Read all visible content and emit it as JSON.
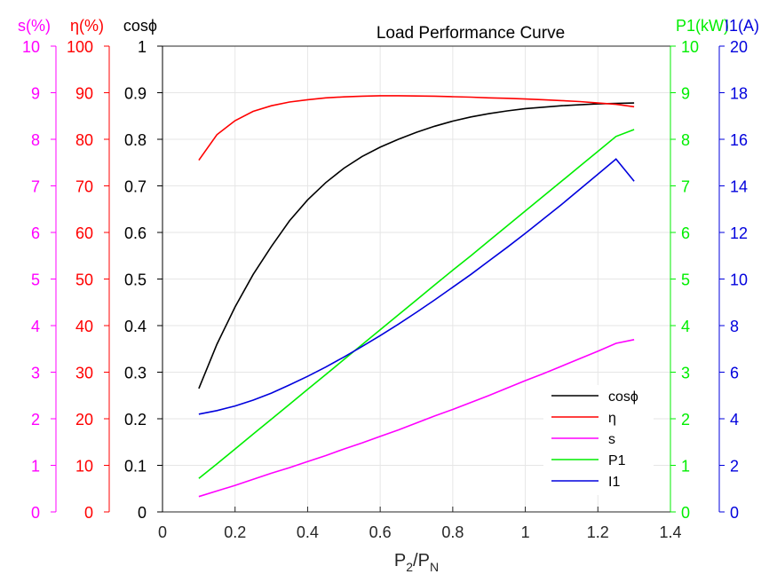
{
  "chart_data": {
    "type": "line",
    "title": "Load Performance Curve",
    "xlabel": {
      "base": "P",
      "sub1": "2",
      "sep": "/P",
      "sub2": "N"
    },
    "xlim": [
      0,
      1.4
    ],
    "xticks": [
      0,
      0.2,
      0.4,
      0.6,
      0.8,
      1,
      1.2,
      1.4
    ],
    "grid": true,
    "legend_position": "bottom-right",
    "axes": [
      {
        "id": "s",
        "side": "left",
        "label": "s(%)",
        "color": "#ff00ff",
        "ylim": [
          0,
          10
        ],
        "ticks": [
          0,
          1,
          2,
          3,
          4,
          5,
          6,
          7,
          8,
          9,
          10
        ]
      },
      {
        "id": "eta",
        "side": "left",
        "label": "η(%)",
        "color": "#ff0000",
        "ylim": [
          0,
          100
        ],
        "ticks": [
          0,
          10,
          20,
          30,
          40,
          50,
          60,
          70,
          80,
          90,
          100
        ]
      },
      {
        "id": "cos",
        "side": "left",
        "label": "cosϕ",
        "color": "#000000",
        "ylim": [
          0,
          1
        ],
        "ticks": [
          0,
          0.1,
          0.2,
          0.3,
          0.4,
          0.5,
          0.6,
          0.7,
          0.8,
          0.9,
          1
        ]
      },
      {
        "id": "p1",
        "side": "right",
        "label": "P1(kW)",
        "color": "#00ee00",
        "ylim": [
          0,
          10
        ],
        "ticks": [
          0,
          1,
          2,
          3,
          4,
          5,
          6,
          7,
          8,
          9,
          10
        ]
      },
      {
        "id": "i1",
        "side": "right",
        "label": "I1(A)",
        "color": "#0000dd",
        "ylim": [
          0,
          20
        ],
        "ticks": [
          0,
          2,
          4,
          6,
          8,
          10,
          12,
          14,
          16,
          18,
          20
        ]
      }
    ],
    "x": [
      0.1,
      0.15,
      0.2,
      0.25,
      0.3,
      0.35,
      0.4,
      0.45,
      0.5,
      0.55,
      0.6,
      0.65,
      0.7,
      0.75,
      0.8,
      0.85,
      0.9,
      0.95,
      1.0,
      1.05,
      1.1,
      1.15,
      1.2,
      1.25,
      1.3
    ],
    "series": [
      {
        "name": "cosϕ",
        "axis": "cos",
        "color": "#000000",
        "values": [
          0.265,
          0.36,
          0.44,
          0.51,
          0.57,
          0.625,
          0.67,
          0.707,
          0.738,
          0.763,
          0.783,
          0.8,
          0.815,
          0.828,
          0.839,
          0.848,
          0.855,
          0.861,
          0.866,
          0.869,
          0.872,
          0.874,
          0.876,
          0.877,
          0.878
        ]
      },
      {
        "name": "η",
        "axis": "eta",
        "color": "#ff0000",
        "values": [
          75.5,
          81,
          84,
          86,
          87.2,
          88,
          88.5,
          88.9,
          89.1,
          89.25,
          89.35,
          89.35,
          89.3,
          89.25,
          89.15,
          89.05,
          88.9,
          88.8,
          88.65,
          88.5,
          88.3,
          88.1,
          87.8,
          87.5,
          87
        ]
      },
      {
        "name": "s",
        "axis": "s",
        "color": "#ff00ff",
        "values": [
          0.33,
          0.45,
          0.57,
          0.7,
          0.83,
          0.95,
          1.08,
          1.21,
          1.35,
          1.48,
          1.62,
          1.76,
          1.91,
          2.06,
          2.2,
          2.35,
          2.5,
          2.66,
          2.82,
          2.97,
          3.13,
          3.29,
          3.45,
          3.62,
          3.7
        ]
      },
      {
        "name": "P1",
        "axis": "p1",
        "color": "#00ee00",
        "values": [
          0.72,
          1.03,
          1.35,
          1.67,
          1.99,
          2.31,
          2.63,
          2.95,
          3.27,
          3.59,
          3.91,
          4.23,
          4.55,
          4.87,
          5.19,
          5.5,
          5.82,
          6.14,
          6.46,
          6.78,
          7.1,
          7.42,
          7.74,
          8.06,
          8.21
        ]
      },
      {
        "name": "I1",
        "axis": "i1",
        "color": "#0000dd",
        "values": [
          4.2,
          4.35,
          4.55,
          4.8,
          5.1,
          5.45,
          5.82,
          6.22,
          6.65,
          7.1,
          7.57,
          8.06,
          8.57,
          9.1,
          9.65,
          10.2,
          10.78,
          11.36,
          11.96,
          12.58,
          13.2,
          13.85,
          14.5,
          15.15,
          14.2
        ]
      }
    ]
  }
}
